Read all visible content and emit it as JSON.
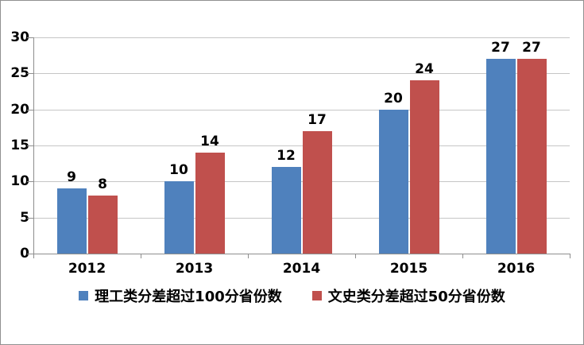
{
  "chart_data": {
    "type": "bar",
    "title": "",
    "categories": [
      "2012",
      "2013",
      "2014",
      "2015",
      "2016"
    ],
    "series": [
      {
        "name": "理工类分差超过100分省份数",
        "color": "#4F81BD",
        "values": [
          9,
          10,
          12,
          20,
          27
        ]
      },
      {
        "name": "文史类分差超过50分省份数",
        "color": "#C0504D",
        "values": [
          8,
          14,
          17,
          24,
          27
        ]
      }
    ],
    "ylim": [
      0,
      30
    ],
    "yticks": [
      0,
      5,
      10,
      15,
      20,
      25,
      30
    ],
    "grid": true,
    "data_labels": true,
    "legend_position": "bottom"
  },
  "colors": {
    "background": "#FFFFFF",
    "border": "#919191",
    "gridline": "#C6C6C6",
    "axis": "#8E8E8E",
    "label_text": "#000000"
  }
}
